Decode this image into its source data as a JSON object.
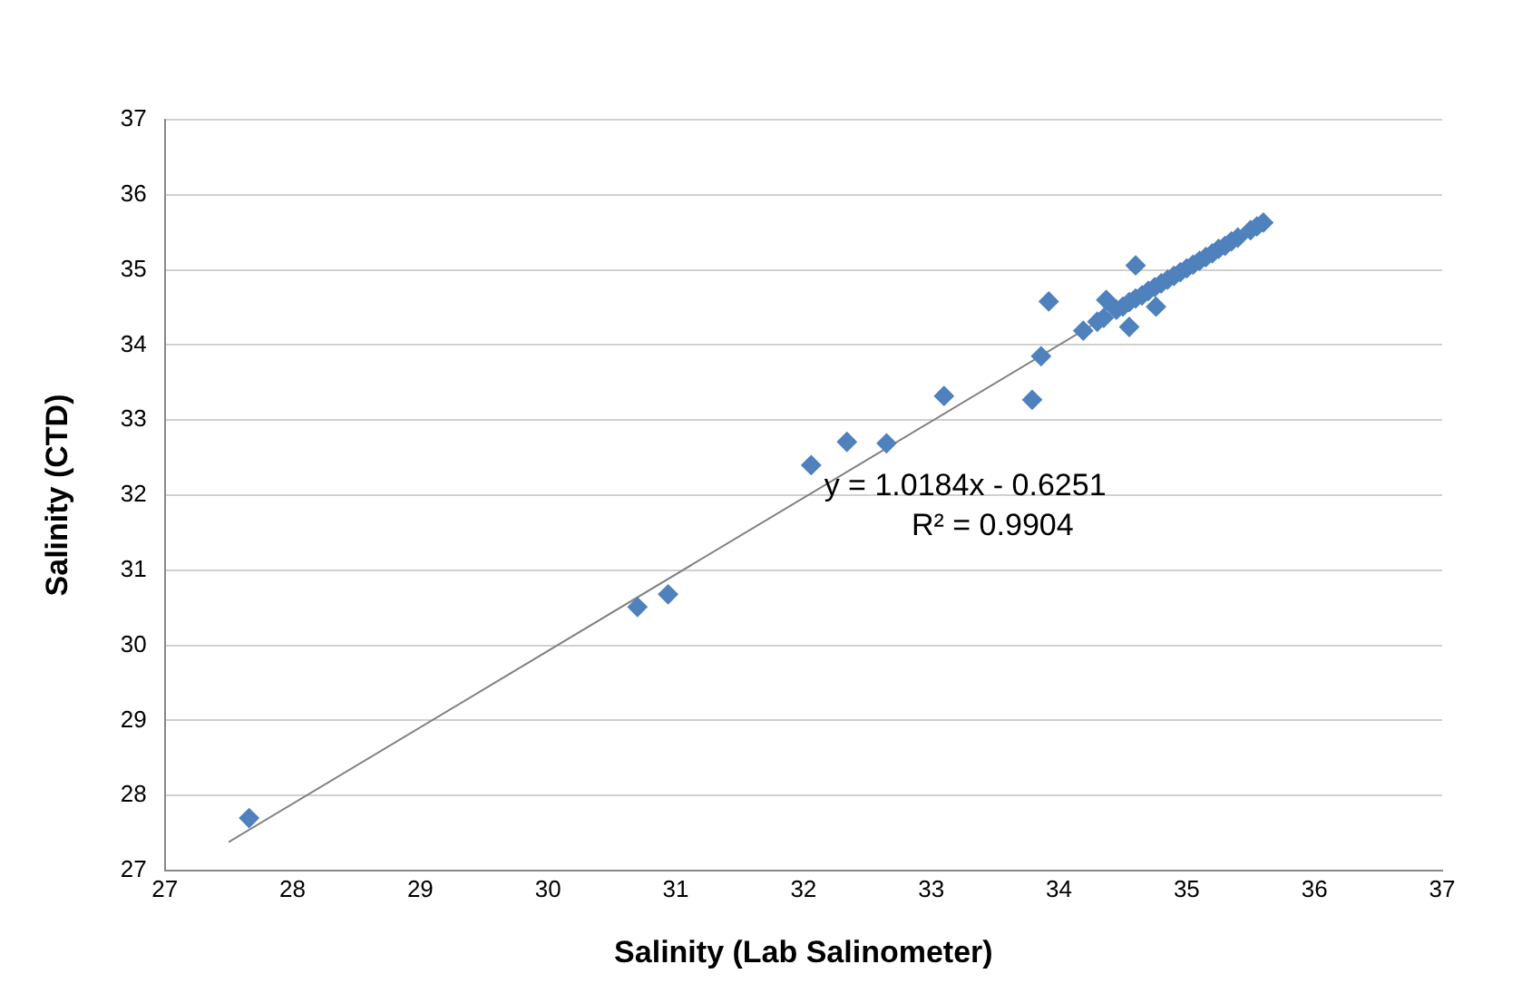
{
  "chart_data": {
    "type": "scatter",
    "xlabel": "Salinity (Lab Salinometer)",
    "ylabel": "Salinity (CTD)",
    "xlim": [
      27,
      37
    ],
    "xticks": [
      27,
      28,
      29,
      30,
      31,
      32,
      33,
      34,
      35,
      36,
      37
    ],
    "ylim": [
      27,
      37
    ],
    "yticks": [
      27,
      28,
      29,
      30,
      31,
      32,
      33,
      34,
      35,
      36,
      37
    ],
    "grid": "y",
    "legend": false,
    "marker": "diamond",
    "annotations": [
      "y = 1.0184x - 0.6251",
      "R² = 0.9904"
    ],
    "series": [
      {
        "color": "#4f81bd",
        "x": [
          27.66,
          30.7,
          30.94,
          32.06,
          32.34,
          32.65,
          33.1,
          33.79,
          33.86,
          33.92,
          34.19,
          34.37,
          34.55,
          34.6,
          34.76,
          34.3,
          34.35,
          34.45,
          34.5,
          34.55,
          34.6,
          34.65,
          34.7,
          34.75,
          34.8,
          34.85,
          34.9,
          34.95,
          35.0,
          35.05,
          35.1,
          35.15,
          35.2,
          35.25,
          35.3,
          35.35,
          35.4,
          35.5,
          35.55,
          35.6
        ],
        "values": [
          27.7,
          30.51,
          30.68,
          32.4,
          32.71,
          32.69,
          33.32,
          33.27,
          33.85,
          34.58,
          34.19,
          34.6,
          34.24,
          35.06,
          34.51,
          34.31,
          34.36,
          34.47,
          34.51,
          34.57,
          34.62,
          34.66,
          34.72,
          34.77,
          34.82,
          34.87,
          34.92,
          34.97,
          35.02,
          35.07,
          35.12,
          35.17,
          35.22,
          35.28,
          35.32,
          35.38,
          35.43,
          35.53,
          35.58,
          35.63
        ]
      },
      {
        "type": "line",
        "color": "#808080",
        "marker": "none",
        "x": [
          27.5,
          35.6
        ],
        "values": [
          27.38,
          35.63
        ]
      }
    ]
  }
}
